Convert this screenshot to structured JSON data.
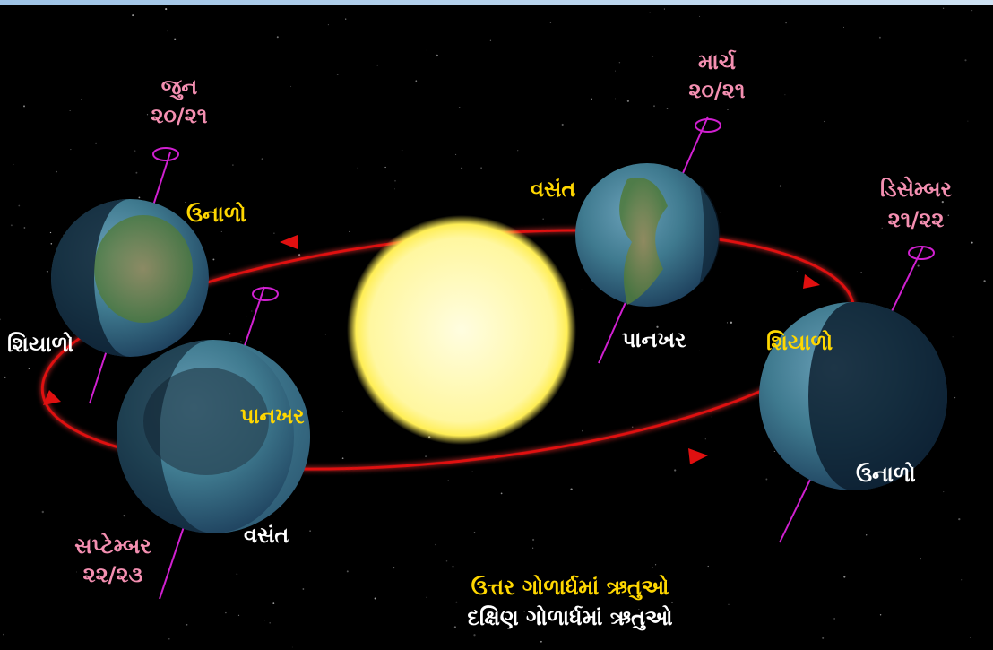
{
  "dates": [
    {
      "month": "જુન",
      "date": "૨૦/૨૧"
    },
    {
      "month": "માર્ચ",
      "date": "૨૦/૨૧"
    },
    {
      "month": "ડિસેમ્બર",
      "date": "૨૧/૨૨"
    },
    {
      "month": "સપ્ટેમ્બર",
      "date": "૨૨/૨૩"
    }
  ],
  "seasons": [
    {
      "north": "ઉનાળો",
      "south": "શિયાળો"
    },
    {
      "north": "વસંત",
      "south": "પાનખર"
    },
    {
      "north": "શિયાળો",
      "south": "ઉનાળો"
    },
    {
      "north": "પાનખર",
      "south": "વસંત"
    }
  ],
  "legend": {
    "north": "ઉત્તર ગોળાર્ધમાં ઋતુઓ",
    "south": "દક્ષિણ ગોળાર્ધમાં ઋતુઓ"
  }
}
